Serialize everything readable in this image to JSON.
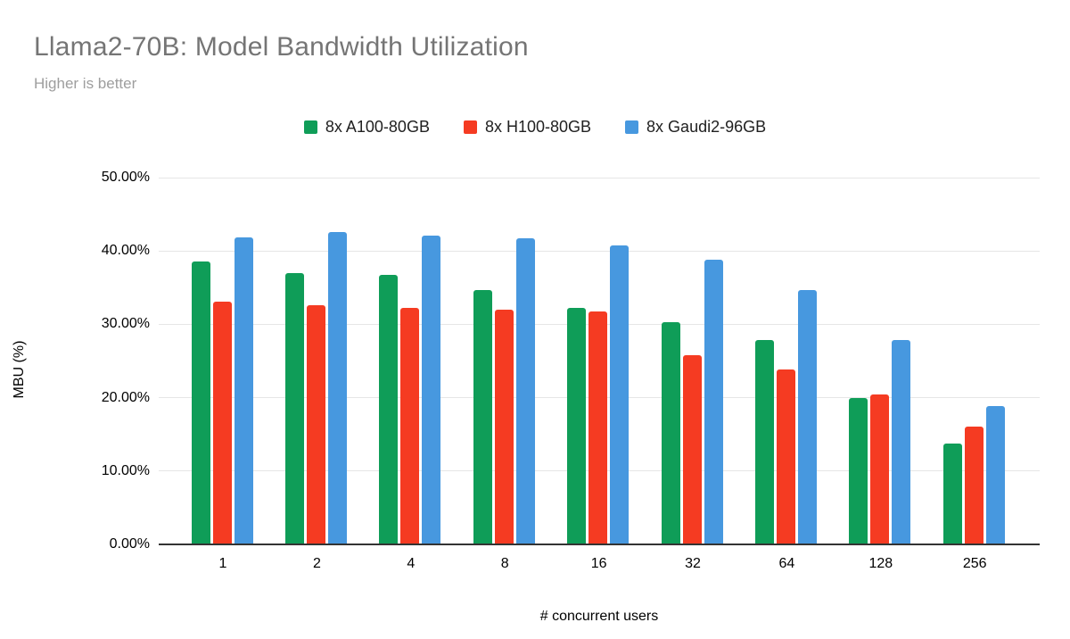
{
  "header": {
    "title": "Llama2-70B: Model Bandwidth Utilization",
    "subtitle": "Higher is better"
  },
  "chart_data": {
    "type": "bar",
    "title": "Llama2-70B: Model Bandwidth Utilization",
    "subtitle": "Higher is better",
    "xlabel": "# concurrent users",
    "ylabel": "MBU (%)",
    "categories": [
      "1",
      "2",
      "4",
      "8",
      "16",
      "32",
      "64",
      "128",
      "256"
    ],
    "series": [
      {
        "name": "8x A100-80GB",
        "color": "#0f9d58",
        "values": [
          38.6,
          37.0,
          36.7,
          34.7,
          32.2,
          30.3,
          27.8,
          20.0,
          13.8
        ]
      },
      {
        "name": "8x H100-80GB",
        "color": "#f53b22",
        "values": [
          33.1,
          32.6,
          32.3,
          32.0,
          31.7,
          25.8,
          23.9,
          20.4,
          16.1
        ]
      },
      {
        "name": "8x Gaudi2-96GB",
        "color": "#4798df",
        "values": [
          41.9,
          42.6,
          42.1,
          41.7,
          40.7,
          38.8,
          34.7,
          27.8,
          18.9
        ]
      }
    ],
    "ylim": [
      0,
      50
    ],
    "yticks": [
      0,
      10,
      20,
      30,
      40,
      50
    ],
    "ytick_labels": [
      "0.00%",
      "10.00%",
      "20.00%",
      "30.00%",
      "40.00%",
      "50.00%"
    ],
    "grid": true,
    "legend_position": "top"
  },
  "colors": {
    "background": "#ffffff",
    "gridline": "#e6e6e6",
    "axis_line": "#333333",
    "title_text": "#757575",
    "subtitle_text": "#9e9e9e",
    "tick_text": "#000000"
  }
}
